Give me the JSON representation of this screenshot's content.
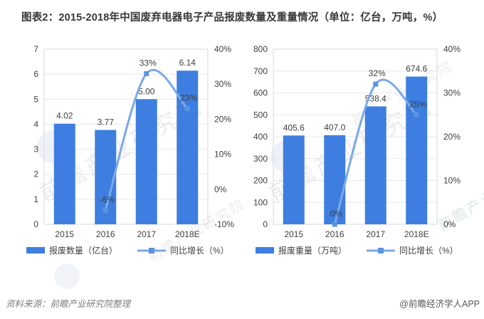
{
  "title": "图表2：2015-2018年中国废弃电器电子产品报废数量及重量情况（单位：亿台，万吨，%）",
  "watermark": {
    "text": "前瞻产业研究院"
  },
  "footer": {
    "source": "资料来源：前瞻产业研究院整理",
    "credit": "@前瞻经济学人APP"
  },
  "colors": {
    "bar": "#3e7ee0",
    "line": "#7aa9e8",
    "marker": "#5b93dd",
    "grid": "#e7e7e7",
    "plot_border": "#d9d9d9",
    "axis_text": "#404040",
    "label_text": "#3f3f3f"
  },
  "chart_data": [
    {
      "name": "报废数量及同比增长",
      "type": "bar",
      "categories": [
        "2015",
        "2016",
        "2017",
        "2018E"
      ],
      "left_axis": {
        "min": 0,
        "max": 7,
        "ticks": [
          0,
          1,
          2,
          3,
          4,
          5,
          6,
          7
        ],
        "tick_labels": [
          "0",
          "1",
          "2",
          "3",
          "4",
          "5",
          "6",
          "7"
        ]
      },
      "right_axis": {
        "min": -10,
        "max": 40,
        "ticks": [
          -10,
          0,
          10,
          20,
          30,
          40
        ],
        "tick_labels": [
          "-10%",
          "0%",
          "10%",
          "20%",
          "30%",
          "40%"
        ]
      },
      "series": [
        {
          "name": "报废数量（亿台）",
          "type": "bar",
          "axis": "left",
          "values": [
            4.02,
            3.77,
            5,
            6.14
          ],
          "labels": [
            "4.02",
            "3.77",
            "5.00",
            "6.14"
          ]
        },
        {
          "name": "同比增长（%）",
          "type": "line",
          "axis": "right",
          "values": [
            null,
            -6,
            33,
            23
          ],
          "labels": [
            "",
            "-6%",
            "33%",
            "23%"
          ]
        }
      ],
      "legend": [
        "报废数量（亿台）",
        "同比增长（%）"
      ],
      "grid": true,
      "legend_position": "bottom"
    },
    {
      "name": "报废重量及同比增长",
      "type": "bar",
      "categories": [
        "2015",
        "2016",
        "2017",
        "2018E"
      ],
      "left_axis": {
        "min": 0,
        "max": 800,
        "ticks": [
          0,
          100,
          200,
          300,
          400,
          500,
          600,
          700,
          800
        ],
        "tick_labels": [
          "0",
          "100",
          "200",
          "300",
          "400",
          "500",
          "600",
          "700",
          "800"
        ]
      },
      "right_axis": {
        "min": 0,
        "max": 40,
        "ticks": [
          0,
          10,
          20,
          30,
          40
        ],
        "tick_labels": [
          "0%",
          "10%",
          "20%",
          "30%",
          "40%"
        ]
      },
      "series": [
        {
          "name": "报废重量（万吨）",
          "type": "bar",
          "axis": "left",
          "values": [
            405.6,
            407,
            538.4,
            674.6
          ],
          "labels": [
            "405.6",
            "407.0",
            "538.4",
            "674.6"
          ]
        },
        {
          "name": "同比增长（%）",
          "type": "line",
          "axis": "right",
          "values": [
            null,
            0,
            32,
            25
          ],
          "labels": [
            "",
            "0%",
            "32%",
            "25%"
          ]
        }
      ],
      "legend": [
        "报废重量（万吨）",
        "同比增长（%）"
      ],
      "grid": true,
      "legend_position": "bottom"
    }
  ]
}
